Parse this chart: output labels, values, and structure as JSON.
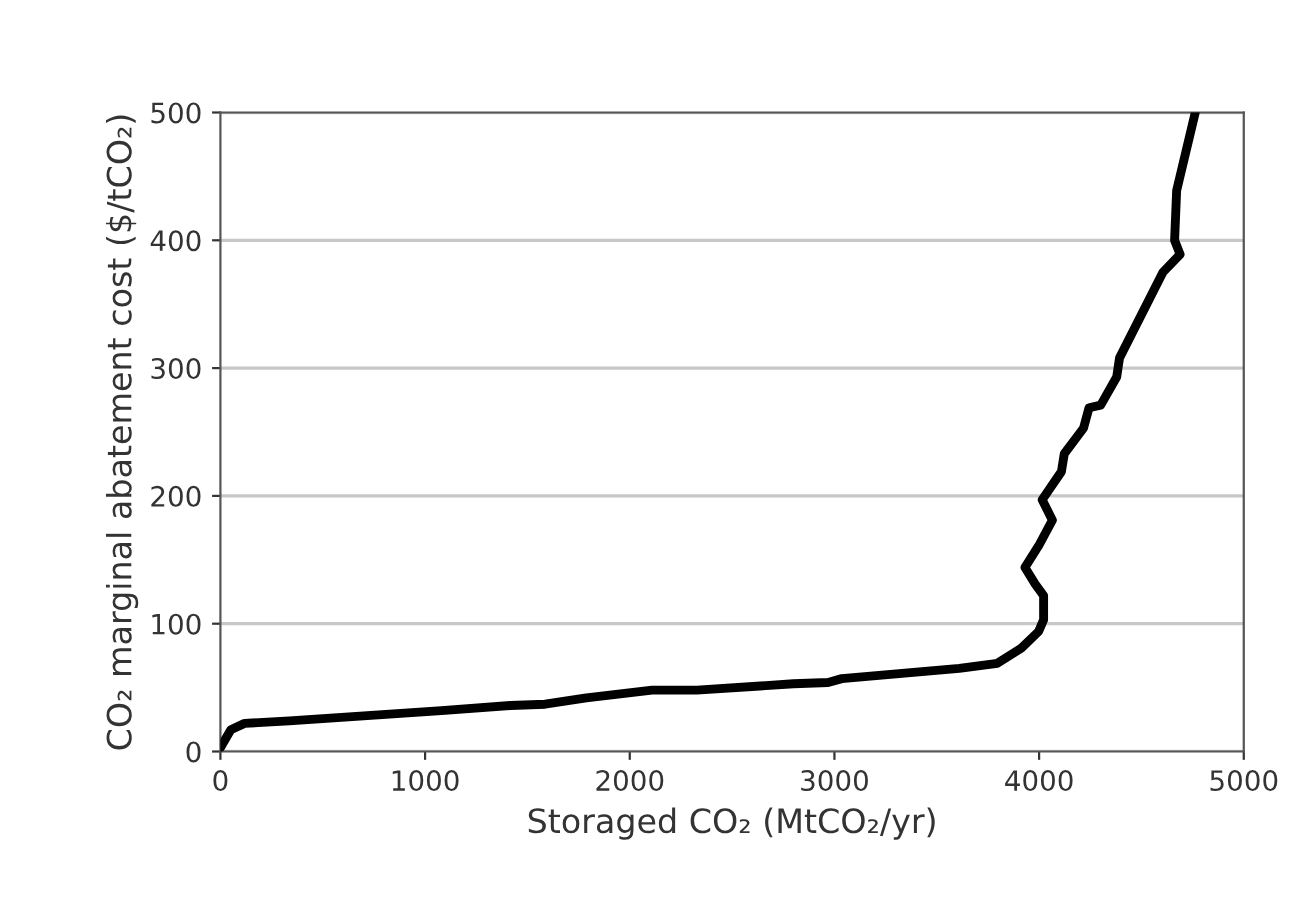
{
  "chart_data": {
    "type": "line",
    "xlabel": "Storaged CO₂ (MtCO₂/yr)",
    "ylabel": "CO₂ marginal abatement cost ($/tCO₂)",
    "series": [
      {
        "color": "#000000",
        "x": [
          0,
          51,
          118,
          337,
          1080,
          1417,
          1586,
          1788,
          2109,
          2328,
          2800,
          2969,
          3036,
          3610,
          3796,
          3914,
          3998,
          4022,
          4022,
          3981,
          3931,
          3998,
          4065,
          4015,
          4109,
          4123,
          4217,
          4244,
          4301,
          4379,
          4393,
          4605,
          4689,
          4662,
          4672,
          4763
        ],
        "values": [
          3,
          17,
          22,
          24,
          32,
          36,
          37,
          42,
          48,
          48,
          53,
          54,
          57,
          65,
          69,
          81,
          94,
          103,
          122,
          131,
          144,
          161,
          181,
          197,
          219,
          233,
          253,
          269,
          271,
          293,
          308,
          375,
          389,
          400,
          439,
          500
        ]
      }
    ],
    "xlim": [
      0,
      5000
    ],
    "ylim": [
      0,
      500
    ],
    "xticks": [
      0,
      1000,
      2000,
      3000,
      4000,
      5000
    ],
    "yticks": [
      0,
      100,
      200,
      300,
      400,
      500
    ],
    "grid": "y",
    "marker": "none",
    "line_style": "solid"
  }
}
